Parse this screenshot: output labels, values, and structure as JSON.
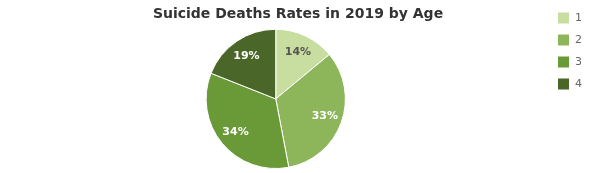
{
  "chart_data": {
    "type": "pie",
    "title": "Suicide Deaths Rates in 2019 by Age",
    "categories": [
      "1",
      "2",
      "3",
      "4"
    ],
    "values": [
      14,
      33,
      34,
      19
    ],
    "value_labels": [
      "14%",
      "33%",
      "34%",
      "19%"
    ],
    "colors": [
      "#c8dda0",
      "#8db55a",
      "#6a9a38",
      "#4a6628"
    ],
    "data_labels": true,
    "legend": "upper right"
  }
}
